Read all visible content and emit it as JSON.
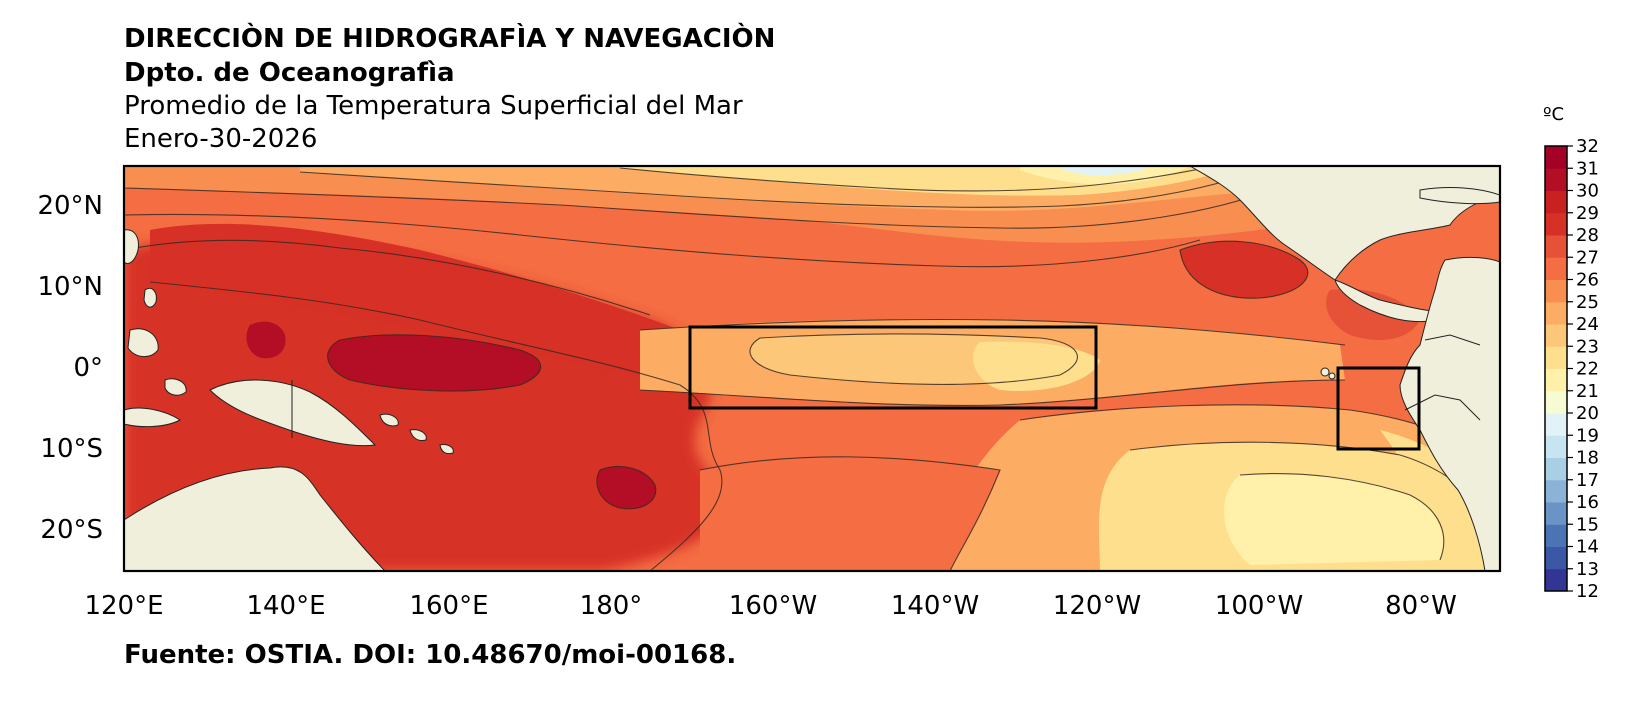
{
  "header": {
    "title_line1": "DIRECCIÒN DE HIDROGRAFÌA Y NAVEGACIÒN",
    "title_line2": "Dpto. de Oceanografìa",
    "title_line3": "Promedio de la Temperatura Superficial del Mar",
    "date": "Enero-30-2026"
  },
  "map": {
    "lon_labels": [
      "120°E",
      "140°E",
      "160°E",
      "180°",
      "160°W",
      "140°W",
      "120°W",
      "100°W",
      "80°W"
    ],
    "lat_labels": [
      "20°N",
      "10°N",
      "0°",
      "10°S",
      "20°S"
    ],
    "boxes": [
      "Niño 3.4 (170°W–120°W, 5°N–5°S)",
      "Niño 1+2 (90°W–80°W, 0°–10°S)"
    ]
  },
  "colorbar": {
    "unit": "ºC",
    "ticks": [
      "32",
      "31",
      "30",
      "29",
      "28",
      "27",
      "26",
      "25",
      "24",
      "23",
      "22",
      "21",
      "20",
      "19",
      "18",
      "17",
      "16",
      "15",
      "14",
      "13",
      "12"
    ],
    "colors": [
      "#313695",
      "#3b58a6",
      "#4a74b4",
      "#6a94c6",
      "#8ab3d6",
      "#a9cfe5",
      "#c6e5f0",
      "#e1f3f7",
      "#f6fbd2",
      "#fff1a9",
      "#fedf8d",
      "#fdc779",
      "#fcac63",
      "#f98e51",
      "#f46d43",
      "#e65237",
      "#d73027",
      "#c8211f",
      "#b40d26",
      "#a50026"
    ]
  },
  "footer": {
    "source": "Fuente: OSTIA. DOI: 10.48670/moi-00168."
  }
}
